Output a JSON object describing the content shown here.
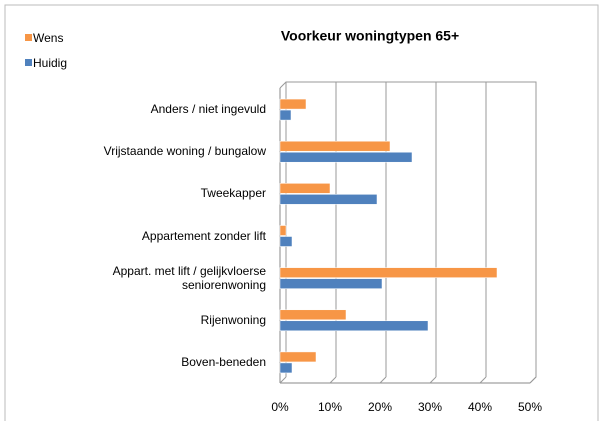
{
  "chart_data": {
    "type": "bar",
    "orientation": "horizontal",
    "title": "Voorkeur woningtypen 65+",
    "categories": [
      "Anders / niet ingevuld",
      "Vrijstaande woning / bungalow",
      "Tweekapper",
      "Appartement zonder lift",
      "Appart. met lift / gelijkvloerse seniorenwoning",
      "Rijenwoning",
      "Boven-beneden"
    ],
    "series": [
      {
        "name": "Wens",
        "color": "#f79646",
        "values": [
          5.2,
          22,
          10,
          1.2,
          43.4,
          13.2,
          7.2
        ]
      },
      {
        "name": "Huidig",
        "color": "#4f81bd",
        "values": [
          2.2,
          26.4,
          19.4,
          2.4,
          20.4,
          29.6,
          2.4
        ]
      }
    ],
    "xlim": [
      0,
      50
    ],
    "xticks": [
      {
        "value": 0,
        "label": "0%"
      },
      {
        "value": 10,
        "label": "10%"
      },
      {
        "value": 20,
        "label": "20%"
      },
      {
        "value": 30,
        "label": "30%"
      },
      {
        "value": 40,
        "label": "40%"
      },
      {
        "value": 50,
        "label": "50%"
      }
    ],
    "grid": true,
    "legend": "top-left"
  }
}
